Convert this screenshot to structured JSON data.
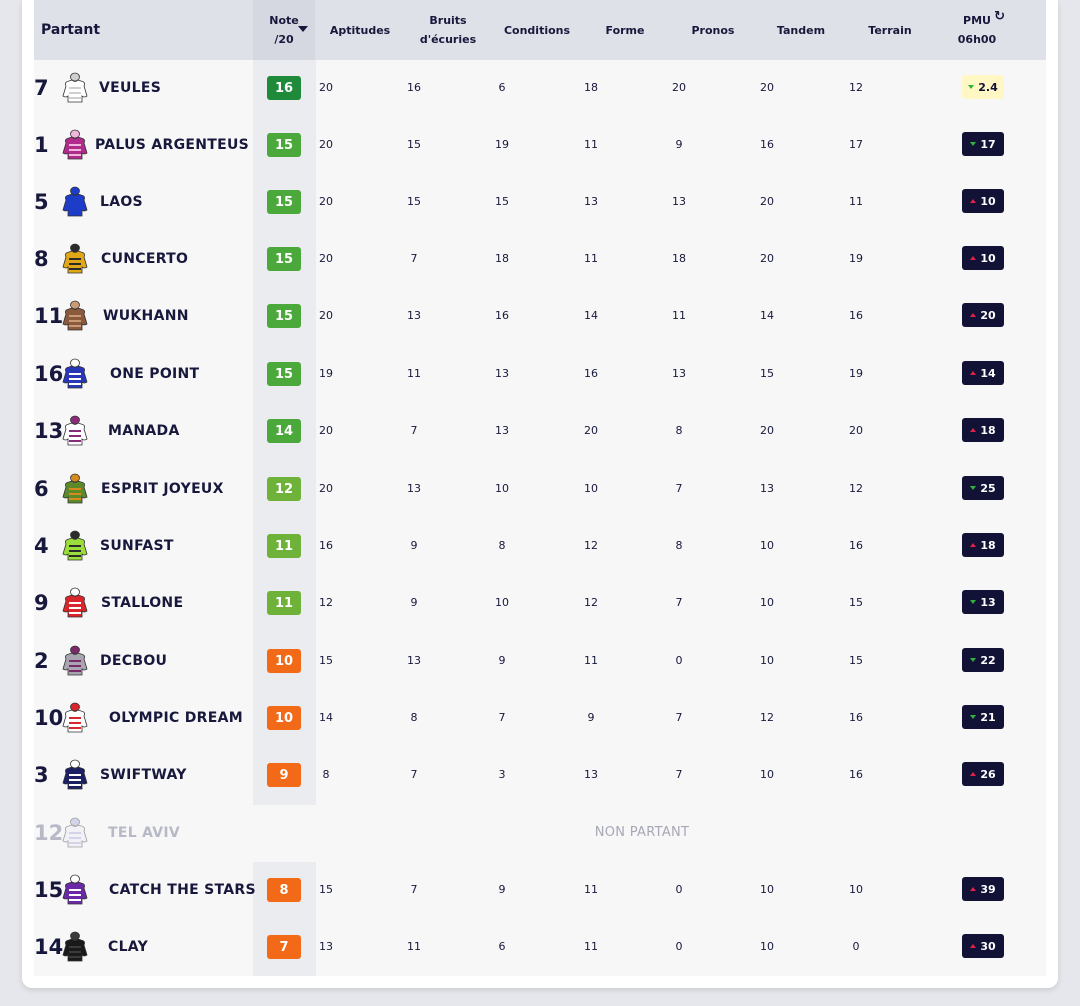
{
  "header": {
    "partant": "Partant",
    "note_line1": "Note",
    "note_line2": "/20",
    "aptitudes": "Aptitudes",
    "bruits_line1": "Bruits",
    "bruits_line2": "d'écuries",
    "conditions": "Conditions",
    "forme": "Forme",
    "pronos": "Pronos",
    "tandem": "Tandem",
    "terrain": "Terrain",
    "pmu_line1": "PMU",
    "pmu_line2": "06h00"
  },
  "non_partant_label": "NON PARTANT",
  "colors": {
    "note_dark_green": "#1f8a3a",
    "note_green": "#4ba83a",
    "note_lightgreen": "#6fb23a",
    "note_orange": "#f26a17",
    "pmu_dark": "#111236",
    "pmu_light": "#fff8c4",
    "arrow_up": "#e0214a",
    "arrow_down": "#2fb33b"
  },
  "rows": [
    {
      "num": "7",
      "name": "VEULES",
      "note": "16",
      "aptitudes": "20",
      "bruits": "16",
      "conditions": "6",
      "forme": "18",
      "pronos": "20",
      "tandem": "20",
      "terrain": "12",
      "pmu": "2.4",
      "trend": "down",
      "pmu_style": "light",
      "silk": "white"
    },
    {
      "num": "1",
      "name": "PALUS ARGENTEUS",
      "note": "15",
      "aptitudes": "20",
      "bruits": "15",
      "conditions": "19",
      "forme": "11",
      "pronos": "9",
      "tandem": "16",
      "terrain": "17",
      "pmu": "17",
      "trend": "down",
      "pmu_style": "dark",
      "silk": "magenta-stripes"
    },
    {
      "num": "5",
      "name": "LAOS",
      "note": "15",
      "aptitudes": "20",
      "bruits": "15",
      "conditions": "15",
      "forme": "13",
      "pronos": "13",
      "tandem": "20",
      "terrain": "11",
      "pmu": "10",
      "trend": "up",
      "pmu_style": "dark",
      "silk": "blue"
    },
    {
      "num": "8",
      "name": "CUNCERTO",
      "note": "15",
      "aptitudes": "20",
      "bruits": "7",
      "conditions": "18",
      "forme": "11",
      "pronos": "18",
      "tandem": "20",
      "terrain": "19",
      "pmu": "10",
      "trend": "up",
      "pmu_style": "dark",
      "silk": "yellow-black-stripes"
    },
    {
      "num": "11",
      "name": "WUKHANN",
      "note": "15",
      "aptitudes": "20",
      "bruits": "13",
      "conditions": "16",
      "forme": "14",
      "pronos": "11",
      "tandem": "14",
      "terrain": "16",
      "pmu": "20",
      "trend": "up",
      "pmu_style": "dark",
      "silk": "brown"
    },
    {
      "num": "16",
      "name": "ONE POINT",
      "note": "15",
      "aptitudes": "19",
      "bruits": "11",
      "conditions": "13",
      "forme": "16",
      "pronos": "13",
      "tandem": "15",
      "terrain": "19",
      "pmu": "14",
      "trend": "up",
      "pmu_style": "dark",
      "silk": "blue-stars"
    },
    {
      "num": "13",
      "name": "MANADA",
      "note": "14",
      "aptitudes": "20",
      "bruits": "7",
      "conditions": "13",
      "forme": "20",
      "pronos": "8",
      "tandem": "20",
      "terrain": "20",
      "pmu": "18",
      "trend": "up",
      "pmu_style": "dark",
      "silk": "white-purple-stars"
    },
    {
      "num": "6",
      "name": "ESPRIT JOYEUX",
      "note": "12",
      "aptitudes": "20",
      "bruits": "13",
      "conditions": "10",
      "forme": "10",
      "pronos": "7",
      "tandem": "13",
      "terrain": "12",
      "pmu": "25",
      "trend": "down",
      "pmu_style": "dark",
      "silk": "green-orange-hoops"
    },
    {
      "num": "4",
      "name": "SUNFAST",
      "note": "11",
      "aptitudes": "16",
      "bruits": "9",
      "conditions": "8",
      "forme": "12",
      "pronos": "8",
      "tandem": "10",
      "terrain": "16",
      "pmu": "18",
      "trend": "up",
      "pmu_style": "dark",
      "silk": "lime-dots"
    },
    {
      "num": "9",
      "name": "STALLONE",
      "note": "11",
      "aptitudes": "12",
      "bruits": "9",
      "conditions": "10",
      "forme": "12",
      "pronos": "7",
      "tandem": "10",
      "terrain": "15",
      "pmu": "13",
      "trend": "down",
      "pmu_style": "dark",
      "silk": "red-white-cross"
    },
    {
      "num": "2",
      "name": "DECBOU",
      "note": "10",
      "aptitudes": "15",
      "bruits": "13",
      "conditions": "9",
      "forme": "11",
      "pronos": "0",
      "tandem": "10",
      "terrain": "15",
      "pmu": "22",
      "trend": "down",
      "pmu_style": "dark",
      "silk": "grey-purple-cross"
    },
    {
      "num": "10",
      "name": "OLYMPIC DREAM",
      "note": "10",
      "aptitudes": "14",
      "bruits": "8",
      "conditions": "7",
      "forme": "9",
      "pronos": "7",
      "tandem": "12",
      "terrain": "16",
      "pmu": "21",
      "trend": "down",
      "pmu_style": "dark",
      "silk": "white-red-blue"
    },
    {
      "num": "3",
      "name": "SWIFTWAY",
      "note": "9",
      "aptitudes": "8",
      "bruits": "7",
      "conditions": "3",
      "forme": "13",
      "pronos": "7",
      "tandem": "10",
      "terrain": "16",
      "pmu": "26",
      "trend": "up",
      "pmu_style": "dark",
      "silk": "navy-white-band"
    },
    {
      "num": "12",
      "name": "TEL AVIV",
      "non_partant": true,
      "silk": "pale-stripes"
    },
    {
      "num": "15",
      "name": "CATCH THE STARS",
      "note": "8",
      "aptitudes": "15",
      "bruits": "7",
      "conditions": "9",
      "forme": "11",
      "pronos": "0",
      "tandem": "10",
      "terrain": "10",
      "pmu": "39",
      "trend": "up",
      "pmu_style": "dark",
      "silk": "purple-white"
    },
    {
      "num": "14",
      "name": "CLAY",
      "note": "7",
      "aptitudes": "13",
      "bruits": "11",
      "conditions": "6",
      "forme": "11",
      "pronos": "0",
      "tandem": "10",
      "terrain": "0",
      "pmu": "30",
      "trend": "up",
      "pmu_style": "dark",
      "silk": "black"
    }
  ]
}
